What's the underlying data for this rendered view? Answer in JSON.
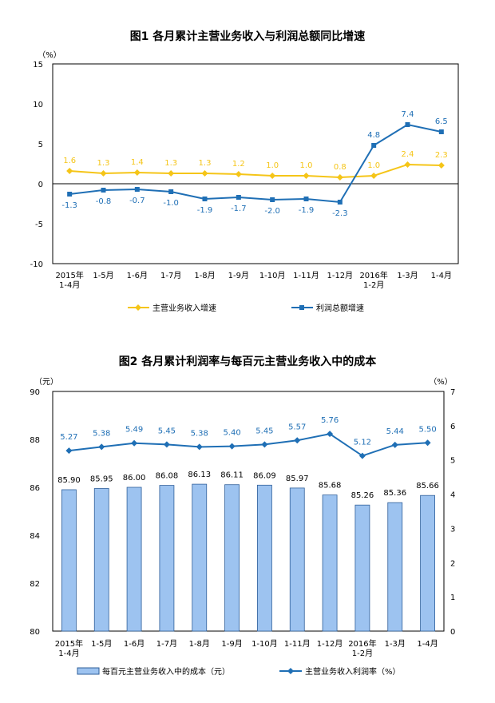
{
  "chart_data": [
    {
      "type": "line",
      "title": "图1  各月累计主营业务收入与利润总额同比增速",
      "ylabel": "（%）",
      "ylim": [
        -10,
        15
      ],
      "yticks": [
        -10,
        -5,
        0,
        5,
        10,
        15
      ],
      "categories": [
        [
          "2015年",
          "1-4月"
        ],
        [
          "1-5月"
        ],
        [
          "1-6月"
        ],
        [
          "1-7月"
        ],
        [
          "1-8月"
        ],
        [
          "1-9月"
        ],
        [
          "1-10月"
        ],
        [
          "1-11月"
        ],
        [
          "1-12月"
        ],
        [
          "2016年",
          "1-2月"
        ],
        [
          "1-3月"
        ],
        [
          "1-4月"
        ]
      ],
      "series": [
        {
          "name": "主营业务收入增速",
          "color": "#f5c518",
          "marker": "diamond",
          "values": [
            1.6,
            1.3,
            1.4,
            1.3,
            1.3,
            1.2,
            1.0,
            1.0,
            0.8,
            1.0,
            2.4,
            2.3
          ]
        },
        {
          "name": "利润总额增速",
          "color": "#1f6fb5",
          "marker": "square",
          "values": [
            -1.3,
            -0.8,
            -0.7,
            -1.0,
            -1.9,
            -1.7,
            -2.0,
            -1.9,
            -2.3,
            4.8,
            7.4,
            6.5
          ]
        }
      ],
      "legend": "bottom"
    },
    {
      "type": "bar+line",
      "title": "图2  各月累计利润率与每百元主营业务收入中的成本",
      "ylabel_left": "（元）",
      "ylabel_right": "（%）",
      "ylim_left": [
        80,
        90
      ],
      "yticks_left": [
        80,
        82,
        84,
        86,
        88,
        90
      ],
      "ylim_right": [
        0,
        7
      ],
      "yticks_right": [
        0,
        1,
        2,
        3,
        4,
        5,
        6,
        7
      ],
      "categories": [
        [
          "2015年",
          "1-4月"
        ],
        [
          "1-5月"
        ],
        [
          "1-6月"
        ],
        [
          "1-7月"
        ],
        [
          "1-8月"
        ],
        [
          "1-9月"
        ],
        [
          "1-10月"
        ],
        [
          "1-11月"
        ],
        [
          "1-12月"
        ],
        [
          "2016年",
          "1-2月"
        ],
        [
          "1-3月"
        ],
        [
          "1-4月"
        ]
      ],
      "bars": {
        "name": "每百元主营业务收入中的成本（元）",
        "color": "#9dc3f0",
        "values": [
          85.9,
          85.95,
          86.0,
          86.08,
          86.13,
          86.11,
          86.09,
          85.97,
          85.68,
          85.26,
          85.36,
          85.66
        ],
        "labels": [
          "85.90",
          "85.95",
          "86.00",
          "86.08",
          "86.13",
          "86.11",
          "86.09",
          "85.97",
          "85.68",
          "85.26",
          "85.36",
          "85.66"
        ]
      },
      "line": {
        "name": "主营业务收入利润率（%）",
        "color": "#1f6fb5",
        "values": [
          5.27,
          5.38,
          5.49,
          5.45,
          5.38,
          5.4,
          5.45,
          5.57,
          5.76,
          5.12,
          5.44,
          5.5
        ],
        "labels": [
          "5.27",
          "5.38",
          "5.49",
          "5.45",
          "5.38",
          "5.40",
          "5.45",
          "5.57",
          "5.76",
          "5.12",
          "5.44",
          "5.50"
        ]
      },
      "legend": "bottom"
    }
  ]
}
